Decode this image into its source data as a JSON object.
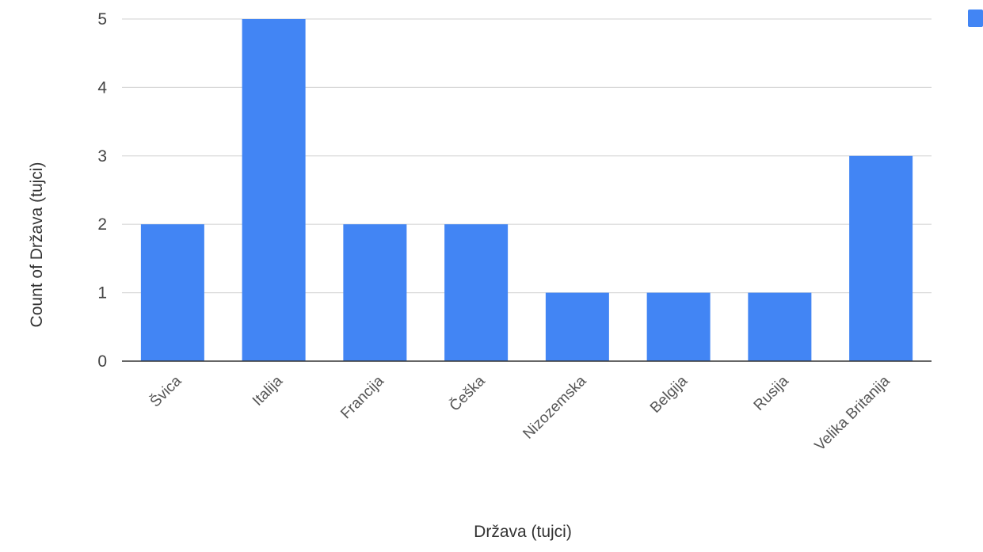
{
  "chart_data": {
    "type": "bar",
    "title": "",
    "xlabel": "Država (tujci)",
    "ylabel": "Count of Država (tujci)",
    "categories": [
      "Švica",
      "Italija",
      "Francija",
      "Češka",
      "Nizozemska",
      "Belgija",
      "Rusija",
      "Velika Britanija"
    ],
    "series": [
      {
        "values": [
          2,
          5,
          2,
          2,
          1,
          1,
          1,
          3
        ],
        "color": "#4285f4"
      }
    ],
    "ylim": [
      0,
      5
    ],
    "yticks": [
      "0",
      "1",
      "2",
      "3",
      "4",
      "5"
    ],
    "grid": true,
    "legend": "top-right"
  }
}
